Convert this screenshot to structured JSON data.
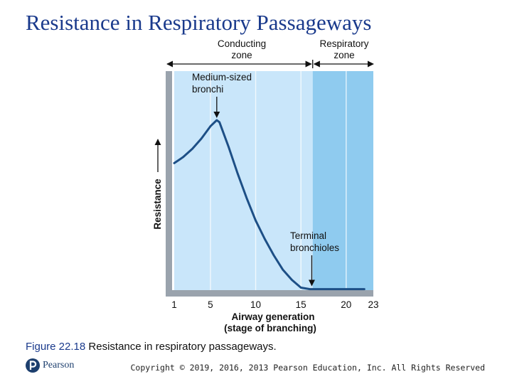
{
  "slide": {
    "title": "Resistance in Respiratory Passageways",
    "caption_figure": "Figure 22.18",
    "caption_text": " Resistance in respiratory passageways.",
    "copyright": "Copyright © 2019, 2016, 2013 Pearson Education, Inc. All Rights Reserved",
    "logo_text": "Pearson"
  },
  "colors": {
    "title": "#1a3a8c",
    "conducting_zone": "#c9e6fa",
    "respiratory_zone": "#8fcbef",
    "curve": "#1d4f86",
    "axis": "#9aa3ad"
  },
  "chart_data": {
    "type": "line",
    "title": "",
    "xlabel_lines": [
      "Airway generation",
      "(stage of branching)"
    ],
    "ylabel": "Resistance",
    "xlim": [
      1,
      23
    ],
    "ylim": [
      0,
      10
    ],
    "xticks": [
      1,
      5,
      10,
      15,
      20,
      23
    ],
    "x": [
      1,
      2,
      3,
      4,
      5,
      5.7,
      6,
      7,
      8,
      9,
      10,
      11,
      12,
      13,
      14,
      15,
      16,
      17,
      18,
      19,
      20,
      21,
      22
    ],
    "values": [
      6.2,
      6.5,
      6.9,
      7.4,
      8.0,
      8.3,
      8.2,
      7.0,
      5.7,
      4.5,
      3.4,
      2.5,
      1.7,
      1.0,
      0.5,
      0.12,
      0.05,
      0.05,
      0.05,
      0.05,
      0.05,
      0.05,
      0.05
    ],
    "zones": [
      {
        "name": "Conducting zone",
        "label_lines": [
          "Conducting",
          "zone"
        ],
        "from": 1,
        "to": 16.3
      },
      {
        "name": "Respiratory zone",
        "label_lines": [
          "Respiratory",
          "zone"
        ],
        "from": 16.3,
        "to": 23
      }
    ],
    "annotations": [
      {
        "label_lines": [
          "Medium-sized",
          "bronchi"
        ],
        "x": 5.7,
        "y": 8.3
      },
      {
        "label_lines": [
          "Terminal",
          "bronchioles"
        ],
        "x": 16.2,
        "y": 0.05
      }
    ]
  }
}
